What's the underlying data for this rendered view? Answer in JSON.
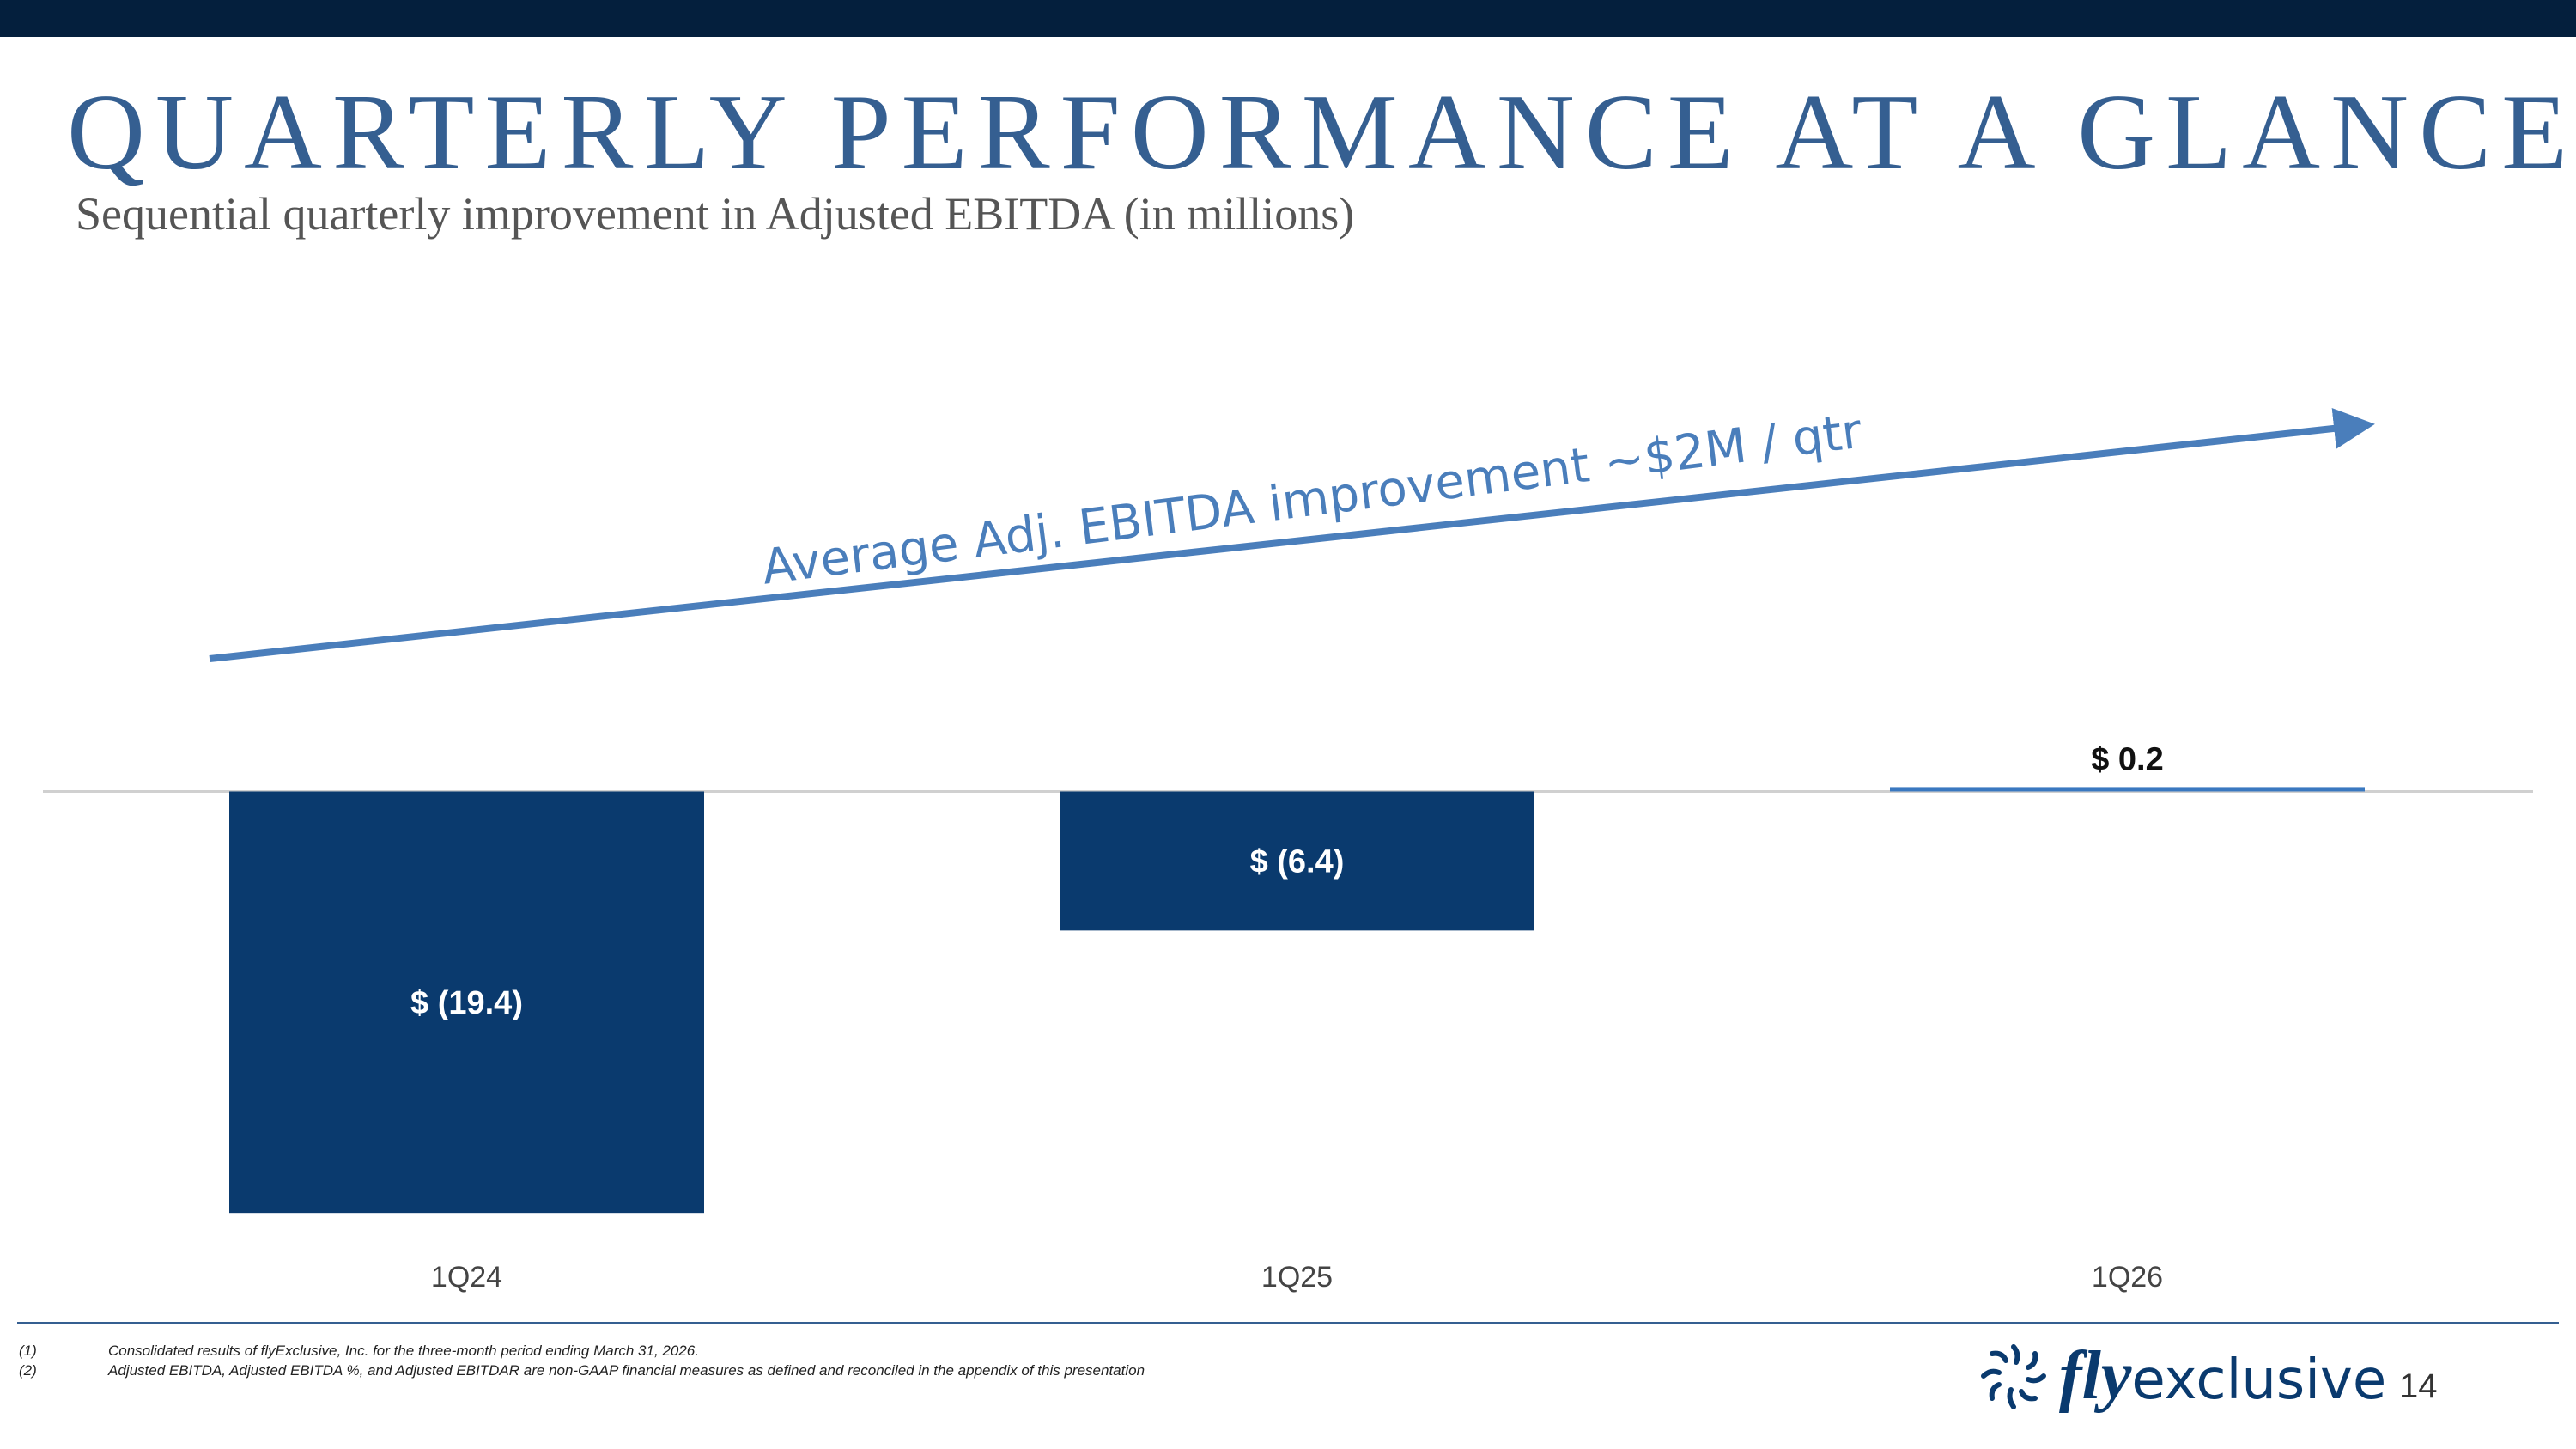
{
  "slide": {
    "title": "QUARTERLY PERFORMANCE AT A GLANCE",
    "subtitle": "Sequential quarterly improvement in Adjusted EBITDA (in millions)",
    "page_number": "14"
  },
  "chart_data": {
    "type": "bar",
    "categories": [
      "1Q24",
      "1Q25",
      "1Q26"
    ],
    "values": [
      -19.4,
      -6.4,
      0.2
    ],
    "data_labels": [
      "$ (19.4)",
      "$ (6.4)",
      "$ 0.2"
    ],
    "ylim": [
      -20.5,
      22
    ],
    "grid": false,
    "legend": "none",
    "annotation": "Average Adj. EBITDA improvement ~$2M / qtr",
    "colors": {
      "bar": "#0a3a6e",
      "positive_bar": "#3a78c0",
      "baseline": "#d0d0d0",
      "annotation": "#4a7ebb",
      "data_label_inside": "#ffffff",
      "data_label_outside": "#111111",
      "tick_label": "#444444"
    }
  },
  "footnotes": [
    {
      "marker": "(1)",
      "text": "Consolidated results of flyExclusive, Inc. for the three-month period ending March 31, 2026."
    },
    {
      "marker": "(2)",
      "text": "Adjusted EBITDA, Adjusted EBITDA %, and Adjusted EBITDAR are non-GAAP financial measures as defined and reconciled in the appendix of this presentation"
    }
  ],
  "logo": {
    "part1": "fly",
    "part2": "exclusive",
    "icon": "starburst-icon"
  }
}
